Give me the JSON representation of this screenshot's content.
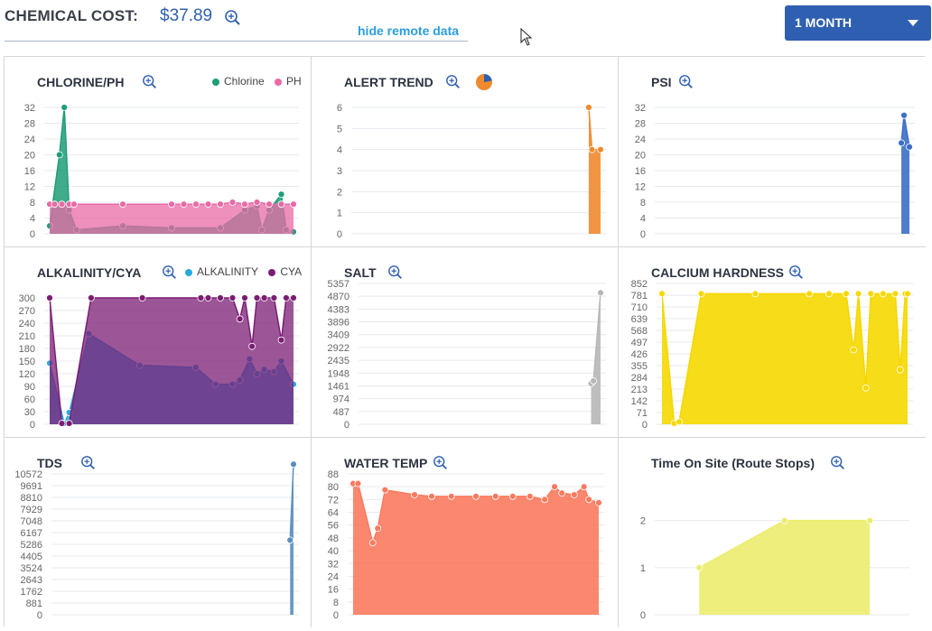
{
  "header": {
    "cost_label": "CHEMICAL COST:",
    "cost_value": "$37.89",
    "hide_remote_label": "hide remote data",
    "range_label": "1 MONTH"
  },
  "colors": {
    "accent": "#2f5fb0",
    "link": "#2a9ee0"
  },
  "chart_data": [
    {
      "id": "chlorine_ph",
      "title": "CHLORINE/PH",
      "type": "area",
      "ylim": [
        0,
        32
      ],
      "yticks": [
        "0",
        "4",
        "8",
        "12",
        "16",
        "20",
        "24",
        "28",
        "32"
      ],
      "series": [
        {
          "name": "Chlorine",
          "color": "#1f9e78",
          "points": [
            [
              0,
              2
            ],
            [
              0.04,
              20
            ],
            [
              0.06,
              32
            ],
            [
              0.08,
              6
            ],
            [
              0.11,
              1
            ],
            [
              0.3,
              2
            ],
            [
              0.5,
              1.5
            ],
            [
              0.7,
              1.5
            ],
            [
              0.8,
              6
            ],
            [
              0.85,
              7
            ],
            [
              0.87,
              1
            ],
            [
              0.9,
              6
            ],
            [
              0.95,
              10
            ],
            [
              0.97,
              1
            ],
            [
              1.0,
              0.5
            ]
          ]
        },
        {
          "name": "PH",
          "color": "#e86aa6",
          "points": [
            [
              0,
              7.5
            ],
            [
              0.02,
              7.5
            ],
            [
              0.05,
              7.5
            ],
            [
              0.08,
              7.5
            ],
            [
              0.1,
              7.5
            ],
            [
              0.3,
              7.5
            ],
            [
              0.5,
              7.5
            ],
            [
              0.55,
              7.5
            ],
            [
              0.6,
              7.5
            ],
            [
              0.65,
              7.5
            ],
            [
              0.7,
              7.5
            ],
            [
              0.75,
              8
            ],
            [
              0.8,
              7.5
            ],
            [
              0.85,
              8
            ],
            [
              0.9,
              7.5
            ],
            [
              0.95,
              7.5
            ],
            [
              1.0,
              7.5
            ]
          ]
        }
      ]
    },
    {
      "id": "alert_trend",
      "title": "ALERT TREND",
      "type": "area",
      "ylim": [
        0,
        6
      ],
      "yticks": [
        "0",
        "1",
        "2",
        "3",
        "4",
        "5",
        "6"
      ],
      "series": [
        {
          "name": "Alerts",
          "color": "#f08a2e",
          "points": [
            [
              0.78,
              6
            ],
            [
              0.84,
              4
            ],
            [
              1.0,
              4
            ]
          ]
        }
      ]
    },
    {
      "id": "psi",
      "title": "PSI",
      "type": "area",
      "ylim": [
        0,
        32
      ],
      "yticks": [
        "0",
        "4",
        "8",
        "12",
        "16",
        "20",
        "24",
        "28",
        "32"
      ],
      "series": [
        {
          "name": "PSI",
          "color": "#3b6fc7",
          "points": [
            [
              0.82,
              23
            ],
            [
              0.88,
              30
            ],
            [
              1.0,
              22
            ]
          ]
        }
      ]
    },
    {
      "id": "alkalinity_cya",
      "title": "ALKALINITY/CYA",
      "type": "area",
      "ylim": [
        0,
        300
      ],
      "yticks": [
        "0",
        "30",
        "60",
        "90",
        "120",
        "150",
        "180",
        "210",
        "240",
        "270",
        "300"
      ],
      "series": [
        {
          "name": "ALKALINITY",
          "color": "#29a8e0",
          "points": [
            [
              0,
              145
            ],
            [
              0.06,
              2
            ],
            [
              0.08,
              28
            ],
            [
              0.16,
              215
            ],
            [
              0.37,
              140
            ],
            [
              0.6,
              135
            ],
            [
              0.68,
              95
            ],
            [
              0.75,
              95
            ],
            [
              0.78,
              105
            ],
            [
              0.82,
              155
            ],
            [
              0.85,
              120
            ],
            [
              0.88,
              130
            ],
            [
              0.92,
              125
            ],
            [
              0.95,
              150
            ],
            [
              1.0,
              95
            ]
          ]
        },
        {
          "name": "CYA",
          "color": "#7b1d74",
          "points": [
            [
              0,
              300
            ],
            [
              0.05,
              2
            ],
            [
              0.08,
              2
            ],
            [
              0.17,
              300
            ],
            [
              0.38,
              300
            ],
            [
              0.62,
              300
            ],
            [
              0.65,
              300
            ],
            [
              0.7,
              300
            ],
            [
              0.75,
              300
            ],
            [
              0.78,
              250
            ],
            [
              0.8,
              300
            ],
            [
              0.83,
              185
            ],
            [
              0.85,
              300
            ],
            [
              0.88,
              300
            ],
            [
              0.92,
              300
            ],
            [
              0.95,
              200
            ],
            [
              0.97,
              300
            ],
            [
              1.0,
              300
            ]
          ]
        }
      ]
    },
    {
      "id": "salt",
      "title": "SALT",
      "type": "area",
      "ylim": [
        0,
        5357
      ],
      "yticks": [
        "0",
        "487",
        "974",
        "1461",
        "1948",
        "2435",
        "2922",
        "3409",
        "3896",
        "4383",
        "4870",
        "5357"
      ],
      "series": [
        {
          "name": "Salt",
          "color": "#b7b7b7",
          "points": [
            [
              0.8,
              1550
            ],
            [
              0.85,
              1650
            ],
            [
              1.0,
              5000
            ]
          ]
        }
      ]
    },
    {
      "id": "calcium_hardness",
      "title": "CALCIUM HARDNESS",
      "type": "area",
      "ylim": [
        0,
        852
      ],
      "yticks": [
        "0",
        "71",
        "142",
        "213",
        "284",
        "355",
        "426",
        "497",
        "568",
        "639",
        "710",
        "781",
        "852"
      ],
      "series": [
        {
          "name": "Calcium",
          "color": "#f5d800",
          "points": [
            [
              0,
              790
            ],
            [
              0.05,
              5
            ],
            [
              0.07,
              15
            ],
            [
              0.16,
              790
            ],
            [
              0.38,
              790
            ],
            [
              0.6,
              790
            ],
            [
              0.68,
              790
            ],
            [
              0.75,
              790
            ],
            [
              0.78,
              450
            ],
            [
              0.8,
              790
            ],
            [
              0.83,
              220
            ],
            [
              0.85,
              790
            ],
            [
              0.9,
              790
            ],
            [
              0.95,
              790
            ],
            [
              0.97,
              330
            ],
            [
              0.99,
              790
            ],
            [
              1.0,
              790
            ]
          ]
        }
      ]
    },
    {
      "id": "tds",
      "title": "TDS",
      "type": "area",
      "ylim": [
        0,
        10572
      ],
      "yticks": [
        "0",
        "881",
        "1762",
        "2643",
        "3524",
        "4405",
        "5286",
        "6167",
        "7048",
        "7929",
        "8810",
        "9691",
        "10572"
      ],
      "series": [
        {
          "name": "TDS",
          "color": "#5b8fbe",
          "points": [
            [
              0.88,
              5600
            ],
            [
              1.0,
              11300
            ]
          ]
        }
      ]
    },
    {
      "id": "water_temp",
      "title": "WATER TEMP",
      "type": "area",
      "ylim": [
        0,
        88
      ],
      "yticks": [
        "0",
        "8",
        "16",
        "24",
        "32",
        "40",
        "48",
        "56",
        "64",
        "72",
        "80",
        "88"
      ],
      "series": [
        {
          "name": "Water Temp",
          "color": "#fa7a5e",
          "points": [
            [
              0,
              82
            ],
            [
              0.02,
              82
            ],
            [
              0.08,
              45
            ],
            [
              0.1,
              54
            ],
            [
              0.13,
              78
            ],
            [
              0.25,
              75
            ],
            [
              0.32,
              74
            ],
            [
              0.4,
              74
            ],
            [
              0.5,
              74
            ],
            [
              0.58,
              74
            ],
            [
              0.65,
              74
            ],
            [
              0.72,
              74
            ],
            [
              0.78,
              72
            ],
            [
              0.82,
              80
            ],
            [
              0.85,
              76
            ],
            [
              0.9,
              75
            ],
            [
              0.94,
              80
            ],
            [
              0.96,
              72
            ],
            [
              1.0,
              70
            ]
          ]
        }
      ]
    },
    {
      "id": "time_on_site",
      "title": "Time On Site (Route Stops)",
      "type": "area",
      "ylim": [
        0,
        2.3
      ],
      "yticks": [
        "0",
        "1",
        "2"
      ],
      "series": [
        {
          "name": "Time On Site",
          "color": "#ecec6e",
          "points": [
            [
              0,
              1
            ],
            [
              0.5,
              2
            ],
            [
              1.0,
              2
            ]
          ]
        }
      ]
    }
  ]
}
